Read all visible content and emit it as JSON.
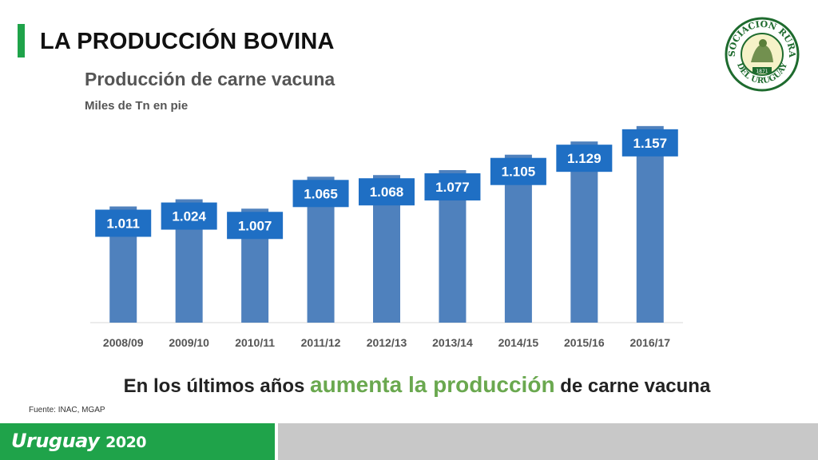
{
  "slide": {
    "title": "LA PRODUCCIÓN BOVINA",
    "headline_pre": "En los últimos años ",
    "headline_highlight": "aumenta la producción",
    "headline_post": " de carne vacuna",
    "source": "Fuente: INAC, MGAP",
    "accent_color": "#1fa34a",
    "highlight_color": "#6aa84f"
  },
  "logo": {
    "name": "Asociación Rural del Uruguay seal",
    "text": "ASOCIACION RURAL DEL URUGUAY",
    "year": "1871"
  },
  "footer": {
    "brand": "Uruguay",
    "year": "2020",
    "green": "#1fa34a",
    "grey": "#c8c8c8"
  },
  "chart_data": {
    "type": "bar",
    "title": "Producción de carne vacuna",
    "subtitle": "Miles de Tn en pie",
    "categories": [
      "2008/09",
      "2009/10",
      "2010/11",
      "2011/12",
      "2012/13",
      "2013/14",
      "2014/15",
      "2015/16",
      "2016/17"
    ],
    "values": [
      1011,
      1024,
      1007,
      1065,
      1068,
      1077,
      1105,
      1129,
      1157
    ],
    "value_labels": [
      "1.011",
      "1.024",
      "1.007",
      "1.065",
      "1.068",
      "1.077",
      "1.105",
      "1.129",
      "1.157"
    ],
    "bar_color": "#4f81bd",
    "label_bg": "#1f6fc4",
    "ylim": [
      800,
      1180
    ],
    "grid": false,
    "legend": "none"
  }
}
